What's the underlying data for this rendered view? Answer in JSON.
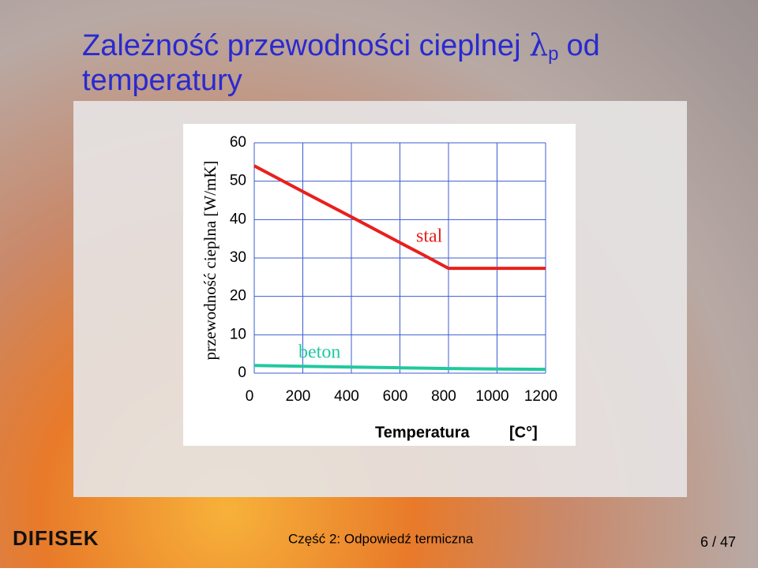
{
  "slide": {
    "title_start": "Zależność przewodności cieplnej",
    "symbol": "λ",
    "subscript": "p",
    "title_end": "od",
    "title_second_line": "temperatury",
    "footer": "Część 2: Odpowiedź termiczna",
    "page": "6 / 47",
    "logo": "DIFISEK"
  },
  "chart_data": {
    "type": "line",
    "y_label": "przewodność cieplna [W/mK]",
    "x_label": "Temperatura",
    "x_unit": "[C°]",
    "x": [
      0,
      200,
      400,
      600,
      700,
      800,
      1200
    ],
    "series": [
      {
        "name": "stal",
        "color": "#e8201c",
        "values": [
          54,
          47.3,
          40.7,
          34,
          30.7,
          27.3,
          27.3
        ]
      },
      {
        "name": "beton",
        "color": "#22c8a0",
        "values": [
          2,
          1.8,
          1.6,
          1.4,
          1.3,
          1.2,
          1
        ]
      }
    ],
    "xlim": [
      0,
      1200
    ],
    "ylim": [
      0,
      60
    ],
    "xticks": [
      0,
      200,
      400,
      600,
      800,
      1000,
      1200
    ],
    "yticks": [
      0,
      10,
      20,
      30,
      40,
      50,
      60
    ],
    "grid": true
  }
}
